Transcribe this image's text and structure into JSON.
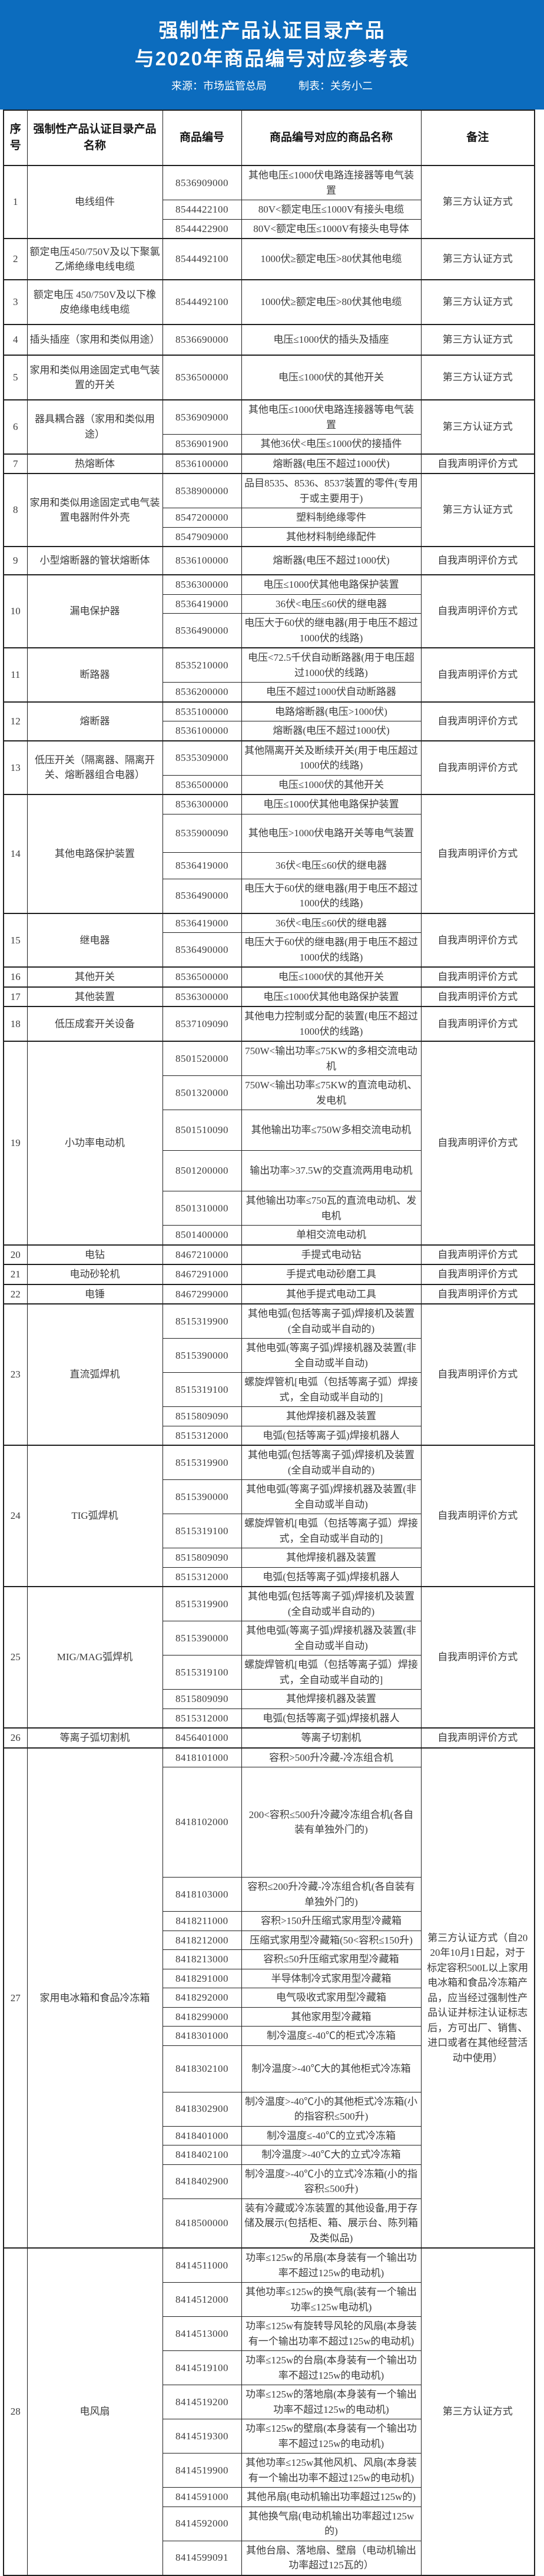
{
  "banner": {
    "title_line1": "强制性产品认证目录产品",
    "title_line2": "与2020年商品编号对应参考表",
    "source": "来源：市场监管总局",
    "credit": "制表：关务小二"
  },
  "colors": {
    "banner_bg": "#0c6cbe",
    "banner_text": "#ffffff",
    "table_border": "#1f1f1f",
    "table_text": "#3c3c3c",
    "page_bg": "#ffffff"
  },
  "table": {
    "columns": [
      "序号",
      "强制性产品认证目录产品名称",
      "商品编号",
      "商品编号对应的商品名称",
      "备注"
    ],
    "rows": [
      {
        "no": "1",
        "product": "电线组件",
        "remark": "第三方认证方式",
        "items": [
          {
            "code": "8536909000",
            "name": "其他电压≤1000伏电路连接器等电气装置"
          },
          {
            "code": "8544422100",
            "name": "80V<额定电压≤1000V有接头电缆"
          },
          {
            "code": "8544422900",
            "name": "80V<额定电压≤1000V有接头电导体"
          }
        ]
      },
      {
        "no": "2",
        "product": "额定电压450/750V及以下聚氯乙烯绝缘电线电缆",
        "remark": "第三方认证方式",
        "items": [
          {
            "code": "8544492100",
            "name": "1000伏≥额定电压>80伏其他电缆",
            "h": 62
          }
        ]
      },
      {
        "no": "3",
        "product": "额定电压 450/750V及以下橡皮绝缘电线电缆",
        "remark": "第三方认证方式",
        "items": [
          {
            "code": "8544492100",
            "name": "1000伏≥额定电压>80伏其他电缆",
            "h": 68
          }
        ]
      },
      {
        "no": "4",
        "product": "插头插座（家用和类似用途）",
        "remark": "第三方认证方式",
        "items": [
          {
            "code": "8536690000",
            "name": "电压≤1000伏的插头及插座",
            "h": 44
          }
        ]
      },
      {
        "no": "5",
        "product": "家用和类似用途固定式电气装置的开关",
        "remark": "第三方认证方式",
        "items": [
          {
            "code": "8536500000",
            "name": "电压≤1000伏的其他开关",
            "h": 68
          }
        ]
      },
      {
        "no": "6",
        "product": "器具耦合器（家用和类似用途）",
        "remark": "第三方认证方式",
        "items": [
          {
            "code": "8536909000",
            "name": "其他电压≤1000伏电路连接器等电气装置"
          },
          {
            "code": "8536901900",
            "name": "其他36伏<电压≤1000伏的接插件"
          }
        ]
      },
      {
        "no": "7",
        "product": "热熔断体",
        "remark": "自我声明评价方式",
        "items": [
          {
            "code": "8536100000",
            "name": "熔断器(电压不超过1000伏)"
          }
        ]
      },
      {
        "no": "8",
        "product": "家用和类似用途固定式电气装置电器附件外壳",
        "remark": "第三方认证方式",
        "items": [
          {
            "code": "8538900000",
            "name": "品目8535、8536、8537装置的零件(专用于或主要用于)"
          },
          {
            "code": "8547200000",
            "name": "塑料制绝缘零件"
          },
          {
            "code": "8547909000",
            "name": "其他材料制绝缘配件"
          }
        ]
      },
      {
        "no": "9",
        "product": "小型熔断器的管状熔断体",
        "remark": "自我声明评价方式",
        "items": [
          {
            "code": "8536100000",
            "name": "熔断器(电压不超过1000伏)",
            "h": 40
          }
        ]
      },
      {
        "no": "10",
        "product": "漏电保护器",
        "remark": "自我声明评价方式",
        "items": [
          {
            "code": "8536300000",
            "name": "电压≤1000伏其他电路保护装置"
          },
          {
            "code": "8536419000",
            "name": "36伏<电压≤60伏的继电器"
          },
          {
            "code": "8536490000",
            "name": "电压大于60伏的继电器(用于电压不超过1000伏的线路)"
          }
        ]
      },
      {
        "no": "11",
        "product": "断路器",
        "remark": "自我声明评价方式",
        "items": [
          {
            "code": "8535210000",
            "name": "电压<72.5千伏自动断路器(用于电压超过1000伏的线路)"
          },
          {
            "code": "8536200000",
            "name": "电压不超过1000伏自动断路器"
          }
        ]
      },
      {
        "no": "12",
        "product": "熔断器",
        "remark": "自我声明评价方式",
        "items": [
          {
            "code": "8535100000",
            "name": "电路熔断器(电压>1000伏)"
          },
          {
            "code": "8536100000",
            "name": "熔断器(电压不超过1000伏)"
          }
        ]
      },
      {
        "no": "13",
        "product": "低压开关（隔离器、隔离开关、熔断器组合电器）",
        "remark": "自我声明评价方式",
        "items": [
          {
            "code": "8535309000",
            "name": "其他隔离开关及断续开关(用于电压超过1000伏的线路)"
          },
          {
            "code": "8536500000",
            "name": "电压≤1000伏的其他开关"
          }
        ]
      },
      {
        "no": "14",
        "product": "其他电路保护装置",
        "remark": "自我声明评价方式",
        "items": [
          {
            "code": "8536300000",
            "name": "电压≤1000伏其他电路保护装置"
          },
          {
            "code": "8535900090",
            "name": "其他电压>1000伏电路开关等电气装置",
            "h": 58
          },
          {
            "code": "8536419000",
            "name": "36伏<电压≤60伏的继电器",
            "h": 38
          },
          {
            "code": "8536490000",
            "name": "电压大于60伏的继电器(用于电压不超过1000伏的线路)"
          }
        ]
      },
      {
        "no": "15",
        "product": "继电器",
        "remark": "自我声明评价方式",
        "items": [
          {
            "code": "8536419000",
            "name": "36伏<电压≤60伏的继电器"
          },
          {
            "code": "8536490000",
            "name": "电压大于60伏的继电器(用于电压不超过1000伏的线路)"
          }
        ]
      },
      {
        "no": "16",
        "product": "其他开关",
        "remark": "自我声明评价方式",
        "items": [
          {
            "code": "8536500000",
            "name": "电压≤1000伏的其他开关"
          }
        ]
      },
      {
        "no": "17",
        "product": "其他装置",
        "remark": "自我声明评价方式",
        "items": [
          {
            "code": "8536300000",
            "name": "电压≤1000伏其他电路保护装置"
          }
        ]
      },
      {
        "no": "18",
        "product": "低压成套开关设备",
        "remark": "自我声明评价方式",
        "items": [
          {
            "code": "8537109090",
            "name": "其他电力控制或分配的装置(电压不超过1000伏的线路)"
          }
        ]
      },
      {
        "no": "19",
        "product": "小功率电动机",
        "remark": "自我声明评价方式",
        "items": [
          {
            "code": "8501520000",
            "name": "750W<输出功率≤75KW的多相交流电动机"
          },
          {
            "code": "8501320000",
            "name": "750W<输出功率≤75KW的直流电动机、发电机"
          },
          {
            "code": "8501510090",
            "name": "其他输出功率≤750W多相交流电动机",
            "h": 62
          },
          {
            "code": "8501200000",
            "name": "输出功率>37.5W的交直流两用电动机",
            "h": 62
          },
          {
            "code": "8501310000",
            "name": "其他输出功率≤750瓦的直流电动机、发电机"
          },
          {
            "code": "8501400000",
            "name": "单相交流电动机"
          }
        ]
      },
      {
        "no": "20",
        "product": "电钻",
        "remark": "自我声明评价方式",
        "items": [
          {
            "code": "8467210000",
            "name": "手提式电动钻"
          }
        ]
      },
      {
        "no": "21",
        "product": "电动砂轮机",
        "remark": "自我声明评价方式",
        "items": [
          {
            "code": "8467291000",
            "name": "手提式电动砂磨工具"
          }
        ]
      },
      {
        "no": "22",
        "product": "电锤",
        "remark": "自我声明评价方式",
        "items": [
          {
            "code": "8467299000",
            "name": "其他手提式电动工具"
          }
        ]
      },
      {
        "no": "23",
        "product": "直流弧焊机",
        "remark": "自我声明评价方式",
        "items": [
          {
            "code": "8515319900",
            "name": "其他电弧(包括等离子弧)焊接机及装置(全自动或半自动的)"
          },
          {
            "code": "8515390000",
            "name": "其他电弧(等离子弧)焊接机器及装置(非全自动或半自动)"
          },
          {
            "code": "8515319100",
            "name": "螺旋焊管机[电弧（包括等离子弧）焊接式，全自动或半自动的]"
          },
          {
            "code": "8515809090",
            "name": "其他焊接机器及装置"
          },
          {
            "code": "8515312000",
            "name": "电弧(包括等离子弧)焊接机器人"
          }
        ]
      },
      {
        "no": "24",
        "product": "TIG弧焊机",
        "remark": "自我声明评价方式",
        "items": [
          {
            "code": "8515319900",
            "name": "其他电弧(包括等离子弧)焊接机及装置(全自动或半自动的)"
          },
          {
            "code": "8515390000",
            "name": "其他电弧(等离子弧)焊接机器及装置(非全自动或半自动)"
          },
          {
            "code": "8515319100",
            "name": "螺旋焊管机[电弧（包括等离子弧）焊接式，全自动或半自动的]"
          },
          {
            "code": "8515809090",
            "name": "其他焊接机器及装置"
          },
          {
            "code": "8515312000",
            "name": "电弧(包括等离子弧)焊接机器人"
          }
        ]
      },
      {
        "no": "25",
        "product": "MIG/MAG弧焊机",
        "remark": "自我声明评价方式",
        "items": [
          {
            "code": "8515319900",
            "name": "其他电弧(包括等离子弧)焊接机及装置(全自动或半自动的)"
          },
          {
            "code": "8515390000",
            "name": "其他电弧(等离子弧)焊接机器及装置(非全自动或半自动)"
          },
          {
            "code": "8515319100",
            "name": "螺旋焊管机[电弧（包括等离子弧）焊接式，全自动或半自动的]"
          },
          {
            "code": "8515809090",
            "name": "其他焊接机器及装置"
          },
          {
            "code": "8515312000",
            "name": "电弧(包括等离子弧)焊接机器人"
          }
        ]
      },
      {
        "no": "26",
        "product": "等离子弧切割机",
        "remark": "自我声明评价方式",
        "items": [
          {
            "code": "8456401000",
            "name": "等离子切割机"
          }
        ]
      },
      {
        "no": "27",
        "product": "家用电冰箱和食品冷冻箱",
        "remark": "第三方认证方式（自2020年10月1日起，对于标定容积500L以上家用电冰箱和食品冷冻箱产品，应当经过强制性产品认证并标注认证标志后，方可出厂、销售、进口或者在其他经营活动中使用）",
        "items": [
          {
            "code": "8418101000",
            "name": "容积>500升冷藏-冷冻组合机"
          },
          {
            "code": "8418102000",
            "name": "200<容积≤500升冷藏冷冻组合机(各自装有单独外门的)",
            "h": 180
          },
          {
            "code": "8418103000",
            "name": "容积≤200升冷藏-冷冻组合机(各自装有单独外门的)"
          },
          {
            "code": "8418211000",
            "name": "容积>150升压缩式家用型冷藏箱"
          },
          {
            "code": "8418212000",
            "name": "压缩式家用型冷藏箱(50<容积≤150升)"
          },
          {
            "code": "8418213000",
            "name": "容积≤50升压缩式家用型冷藏箱"
          },
          {
            "code": "8418291000",
            "name": "半导体制冷式家用型冷藏箱"
          },
          {
            "code": "8418292000",
            "name": "电气吸收式家用型冷藏箱"
          },
          {
            "code": "8418299000",
            "name": "其他家用型冷藏箱"
          },
          {
            "code": "8418301000",
            "name": "制冷温度≤-40℃的柜式冷冻箱"
          },
          {
            "code": "8418302100",
            "name": "制冷温度>-40℃大的其他柜式冷冻箱",
            "h": 72
          },
          {
            "code": "8418302900",
            "name": "制冷温度>-40℃小的其他柜式冷冻箱(小的指容积≤500升)"
          },
          {
            "code": "8418401000",
            "name": "制冷温度≤-40℃的立式冷冻箱"
          },
          {
            "code": "8418402100",
            "name": "制冷温度>-40℃大的立式冷冻箱"
          },
          {
            "code": "8418402900",
            "name": "制冷温度>-40℃小的立式冷冻箱(小的指容积≤500升)"
          },
          {
            "code": "8418500000",
            "name": "装有冷藏或冷冻装置的其他设备,用于存储及展示(包括柜、箱、展示台、陈列箱及类似品)"
          }
        ]
      },
      {
        "no": "28",
        "product": "电风扇",
        "remark": "第三方认证方式",
        "items": [
          {
            "code": "8414511000",
            "name": "功率≤125w的吊扇(本身装有一个输出功率不超过125w的电动机)"
          },
          {
            "code": "8414512000",
            "name": "其他功率≤125w的换气扇(装有一个输出功率≤125w电动机)"
          },
          {
            "code": "8414513000",
            "name": "功率≤125w有旋转导风轮的风扇(本身装有一个输出功率不超过125w的电动机)"
          },
          {
            "code": "8414519100",
            "name": "功率≤125w的台扇(本身装有一个输出功率不超过125w的电动机)"
          },
          {
            "code": "8414519200",
            "name": "功率≤125w的落地扇(本身装有一个输出功率不超过125w的电动机)"
          },
          {
            "code": "8414519300",
            "name": "功率≤125w的壁扇(本身装有一个输出功率不超过125w的电动机)"
          },
          {
            "code": "8414519900",
            "name": "其他功率≤125w其他风机、风扇(本身装有一个输出功率不超过125w的电动机)"
          },
          {
            "code": "8414591000",
            "name": "其他吊扇(电动机输出功率超过125w的)"
          },
          {
            "code": "8414592000",
            "name": "其他换气扇(电动机输出功率超过125w的)"
          },
          {
            "code": "8414599091",
            "name": "其他台扇、落地扇、壁扇（电动机输出功率超过125瓦的）"
          }
        ]
      }
    ]
  }
}
